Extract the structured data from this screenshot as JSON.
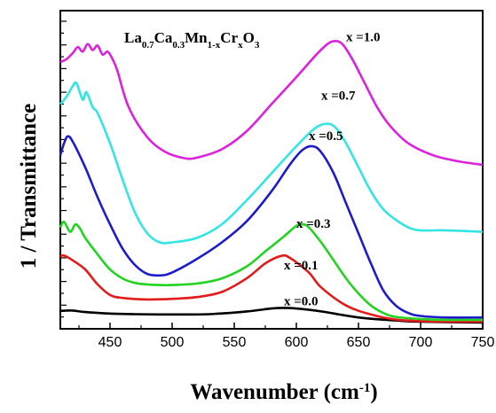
{
  "chart_data": {
    "type": "line",
    "title_parts": [
      {
        "text": "La",
        "sub": false
      },
      {
        "text": "0.7",
        "sub": true
      },
      {
        "text": "Ca",
        "sub": false
      },
      {
        "text": "0.3",
        "sub": true
      },
      {
        "text": "Mn",
        "sub": false
      },
      {
        "text": "1-x",
        "sub": true
      },
      {
        "text": "Cr",
        "sub": false
      },
      {
        "text": "x",
        "sub": true
      },
      {
        "text": "O",
        "sub": false
      },
      {
        "text": "3",
        "sub": true
      }
    ],
    "xlabel_main": "Wavenumber (cm",
    "xlabel_sup": "-1",
    "xlabel_end": ")",
    "ylabel": "1 / Transmittance",
    "xlim": [
      410,
      750
    ],
    "ylim": [
      0,
      1
    ],
    "xticks": [
      "450",
      "500",
      "550",
      "600",
      "650",
      "700",
      "750"
    ],
    "xtick_values": [
      450,
      500,
      550,
      600,
      650,
      700,
      750
    ],
    "series": [
      {
        "name": "x =0.0",
        "color": "#000000",
        "label_at": [
          590,
          0.06
        ],
        "points": [
          [
            410,
            0.042
          ],
          [
            420,
            0.043
          ],
          [
            430,
            0.038
          ],
          [
            450,
            0.033
          ],
          [
            470,
            0.031
          ],
          [
            500,
            0.03
          ],
          [
            530,
            0.031
          ],
          [
            560,
            0.04
          ],
          [
            580,
            0.05
          ],
          [
            590,
            0.052
          ],
          [
            600,
            0.05
          ],
          [
            620,
            0.04
          ],
          [
            650,
            0.02
          ],
          [
            680,
            0.01
          ],
          [
            700,
            0.006
          ],
          [
            750,
            0.003
          ]
        ]
      },
      {
        "name": "x =0.1",
        "color": "#e31b1b",
        "label_at": [
          590,
          0.18
        ],
        "points": [
          [
            410,
            0.223
          ],
          [
            413,
            0.226
          ],
          [
            420,
            0.21
          ],
          [
            430,
            0.18
          ],
          [
            440,
            0.13
          ],
          [
            450,
            0.095
          ],
          [
            460,
            0.085
          ],
          [
            480,
            0.08
          ],
          [
            500,
            0.082
          ],
          [
            520,
            0.088
          ],
          [
            540,
            0.105
          ],
          [
            560,
            0.15
          ],
          [
            575,
            0.2
          ],
          [
            588,
            0.225
          ],
          [
            595,
            0.218
          ],
          [
            610,
            0.17
          ],
          [
            620,
            0.12
          ],
          [
            640,
            0.06
          ],
          [
            660,
            0.03
          ],
          [
            680,
            0.013
          ],
          [
            700,
            0.008
          ],
          [
            720,
            0.006
          ],
          [
            750,
            0.006
          ]
        ]
      },
      {
        "name": "x =0.3",
        "color": "#22d322",
        "label_at": [
          600,
          0.318
        ],
        "points": [
          [
            410,
            0.32
          ],
          [
            413,
            0.338
          ],
          [
            418,
            0.305
          ],
          [
            422,
            0.33
          ],
          [
            426,
            0.315
          ],
          [
            430,
            0.285
          ],
          [
            440,
            0.23
          ],
          [
            450,
            0.18
          ],
          [
            460,
            0.15
          ],
          [
            470,
            0.135
          ],
          [
            480,
            0.13
          ],
          [
            490,
            0.128
          ],
          [
            500,
            0.128
          ],
          [
            520,
            0.133
          ],
          [
            540,
            0.15
          ],
          [
            560,
            0.19
          ],
          [
            575,
            0.24
          ],
          [
            590,
            0.29
          ],
          [
            600,
            0.325
          ],
          [
            605,
            0.33
          ],
          [
            610,
            0.32
          ],
          [
            620,
            0.27
          ],
          [
            630,
            0.21
          ],
          [
            640,
            0.15
          ],
          [
            650,
            0.1
          ],
          [
            660,
            0.06
          ],
          [
            670,
            0.035
          ],
          [
            680,
            0.022
          ],
          [
            700,
            0.015
          ],
          [
            720,
            0.012
          ],
          [
            750,
            0.012
          ]
        ]
      },
      {
        "name": "x =0.5",
        "color": "#1c1ccb",
        "label_at": [
          610,
          0.61
        ],
        "points": [
          [
            410,
            0.56
          ],
          [
            413,
            0.6
          ],
          [
            416,
            0.623
          ],
          [
            420,
            0.605
          ],
          [
            430,
            0.52
          ],
          [
            440,
            0.42
          ],
          [
            450,
            0.33
          ],
          [
            460,
            0.25
          ],
          [
            470,
            0.195
          ],
          [
            480,
            0.165
          ],
          [
            490,
            0.16
          ],
          [
            500,
            0.17
          ],
          [
            520,
            0.215
          ],
          [
            540,
            0.27
          ],
          [
            560,
            0.34
          ],
          [
            580,
            0.44
          ],
          [
            595,
            0.53
          ],
          [
            605,
            0.578
          ],
          [
            613,
            0.59
          ],
          [
            620,
            0.57
          ],
          [
            630,
            0.5
          ],
          [
            640,
            0.4
          ],
          [
            650,
            0.3
          ],
          [
            660,
            0.2
          ],
          [
            670,
            0.11
          ],
          [
            680,
            0.06
          ],
          [
            690,
            0.035
          ],
          [
            700,
            0.025
          ],
          [
            720,
            0.02
          ],
          [
            750,
            0.02
          ]
        ]
      },
      {
        "name": "x =0.7",
        "color": "#33e5e5",
        "label_at": [
          620,
          0.745
        ],
        "points": [
          [
            410,
            0.73
          ],
          [
            415,
            0.755
          ],
          [
            420,
            0.79
          ],
          [
            423,
            0.8
          ],
          [
            428,
            0.745
          ],
          [
            431,
            0.77
          ],
          [
            436,
            0.72
          ],
          [
            440,
            0.7
          ],
          [
            450,
            0.6
          ],
          [
            460,
            0.48
          ],
          [
            470,
            0.37
          ],
          [
            480,
            0.3
          ],
          [
            490,
            0.27
          ],
          [
            500,
            0.27
          ],
          [
            520,
            0.285
          ],
          [
            540,
            0.33
          ],
          [
            560,
            0.41
          ],
          [
            580,
            0.5
          ],
          [
            600,
            0.59
          ],
          [
            615,
            0.65
          ],
          [
            625,
            0.665
          ],
          [
            632,
            0.65
          ],
          [
            640,
            0.6
          ],
          [
            650,
            0.52
          ],
          [
            660,
            0.44
          ],
          [
            670,
            0.38
          ],
          [
            680,
            0.345
          ],
          [
            690,
            0.32
          ],
          [
            700,
            0.31
          ],
          [
            720,
            0.31
          ],
          [
            750,
            0.305
          ]
        ]
      },
      {
        "name": "x =1.0",
        "color": "#dd22dd",
        "label_at": [
          640,
          0.94
        ],
        "points": [
          [
            410,
            0.87
          ],
          [
            415,
            0.88
          ],
          [
            420,
            0.9
          ],
          [
            424,
            0.92
          ],
          [
            428,
            0.905
          ],
          [
            432,
            0.93
          ],
          [
            436,
            0.91
          ],
          [
            440,
            0.925
          ],
          [
            444,
            0.895
          ],
          [
            448,
            0.905
          ],
          [
            452,
            0.88
          ],
          [
            456,
            0.84
          ],
          [
            465,
            0.72
          ],
          [
            480,
            0.62
          ],
          [
            495,
            0.57
          ],
          [
            510,
            0.55
          ],
          [
            520,
            0.552
          ],
          [
            540,
            0.58
          ],
          [
            560,
            0.64
          ],
          [
            580,
            0.73
          ],
          [
            600,
            0.82
          ],
          [
            615,
            0.89
          ],
          [
            625,
            0.93
          ],
          [
            631,
            0.94
          ],
          [
            637,
            0.93
          ],
          [
            645,
            0.88
          ],
          [
            655,
            0.8
          ],
          [
            665,
            0.72
          ],
          [
            675,
            0.66
          ],
          [
            690,
            0.6
          ],
          [
            710,
            0.56
          ],
          [
            730,
            0.54
          ],
          [
            750,
            0.528
          ]
        ]
      }
    ]
  }
}
